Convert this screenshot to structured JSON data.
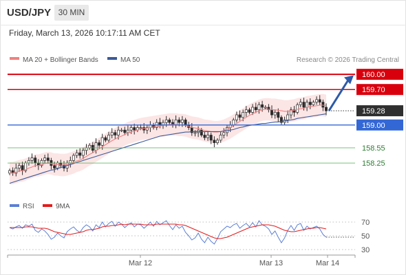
{
  "header": {
    "symbol": "USD/JPY",
    "timeframe": "30 MIN",
    "datetime": "Friday, March 13, 2026 10:17:11 AM CET"
  },
  "legend": {
    "ma20_label": "MA 20 + Bollinger Bands",
    "ma50_label": "MA 50",
    "rsi_label": "RSI",
    "rsi_ma_label": "9MA"
  },
  "copyright": "Research © 2026 Trading Central",
  "colors": {
    "resistance": "#d9000d",
    "support_strong": "#3367d6",
    "support": "#4caf50",
    "ma20": "#f08080",
    "ma50": "#3a5a9a",
    "band_fill": "#fbdcdc",
    "up_candle": "#ffffff",
    "down_candle": "#2b2b2b",
    "rsi": "#5b7fd6",
    "rsi_ma": "#e31b1b"
  },
  "chart_data": [
    {
      "type": "candlestick",
      "instrument": "USD/JPY",
      "interval": "30 MIN",
      "x_ticks": [
        "Mar 12",
        "Mar 13",
        "Mar 14"
      ],
      "price_ylim": [
        157.6,
        160.15
      ],
      "current_price": 159.28,
      "levels": [
        {
          "label": "160.00",
          "value": 160.0,
          "kind": "resistance",
          "style": "bold-red",
          "tag": "box"
        },
        {
          "label": "159.70",
          "value": 159.7,
          "kind": "resistance",
          "style": "red",
          "tag": "box"
        },
        {
          "label": "159.28",
          "value": 159.28,
          "kind": "last",
          "style": "dotted",
          "tag": "dark-box"
        },
        {
          "label": "159.00",
          "value": 159.0,
          "kind": "pivot",
          "style": "blue",
          "tag": "blue-box"
        },
        {
          "label": "158.55",
          "value": 158.55,
          "kind": "support",
          "style": "green",
          "tag": "text"
        },
        {
          "label": "158.25",
          "value": 158.25,
          "kind": "support",
          "style": "green",
          "tag": "text"
        }
      ],
      "scenario": "up",
      "closes": [
        158.1,
        158.05,
        158.15,
        158.2,
        158.1,
        158.25,
        158.3,
        158.35,
        158.25,
        158.2,
        158.3,
        158.35,
        158.3,
        158.2,
        158.15,
        158.25,
        158.2,
        158.15,
        158.25,
        158.3,
        158.4,
        158.45,
        158.4,
        158.5,
        158.55,
        158.6,
        158.5,
        158.65,
        158.6,
        158.75,
        158.7,
        158.8,
        158.85,
        158.8,
        158.9,
        158.9,
        158.85,
        158.9,
        158.95,
        158.9,
        158.95,
        158.95,
        158.9,
        158.95,
        159.0,
        158.95,
        159.05,
        159.0,
        159.05,
        159.1,
        159.05,
        159.0,
        159.1,
        159.05,
        159.1,
        159.0,
        158.95,
        158.85,
        158.85,
        158.9,
        158.8,
        158.75,
        158.8,
        158.7,
        158.65,
        158.7,
        158.8,
        158.85,
        158.95,
        159.0,
        159.1,
        159.2,
        159.15,
        159.25,
        159.3,
        159.25,
        159.35,
        159.3,
        159.4,
        159.35,
        159.35,
        159.3,
        159.2,
        159.25,
        159.15,
        159.05,
        159.1,
        159.2,
        159.3,
        159.25,
        159.4,
        159.45,
        159.35,
        159.45,
        159.4,
        159.45,
        159.5,
        159.45,
        159.35,
        159.28
      ],
      "ma20": [
        158.05,
        158.05,
        158.07,
        158.09,
        158.1,
        158.12,
        158.15,
        158.17,
        158.2,
        158.2,
        158.22,
        158.24,
        158.25,
        158.24,
        158.22,
        158.22,
        158.21,
        158.21,
        158.22,
        158.24,
        158.26,
        158.29,
        158.31,
        158.34,
        158.38,
        158.42,
        158.45,
        158.49,
        158.53,
        158.57,
        158.61,
        158.65,
        158.69,
        158.72,
        158.76,
        158.78,
        158.81,
        158.84,
        158.86,
        158.88,
        158.9,
        158.92,
        158.93,
        158.94,
        158.95,
        158.96,
        158.97,
        158.98,
        158.99,
        159.0,
        159.01,
        159.01,
        159.01,
        159.0,
        159.0,
        158.99,
        158.97,
        158.95,
        158.94,
        158.93,
        158.91,
        158.89,
        158.88,
        158.87,
        158.86,
        158.86,
        158.87,
        158.89,
        158.92,
        158.95,
        158.99,
        159.03,
        159.07,
        159.11,
        159.15,
        159.19,
        159.22,
        159.25,
        159.28,
        159.3,
        159.31,
        159.31,
        159.3,
        159.3,
        159.29,
        159.28,
        159.27,
        159.27,
        159.28,
        159.29,
        159.31,
        159.32,
        159.33,
        159.35,
        159.36,
        159.37,
        159.38,
        159.39,
        159.39,
        159.38
      ],
      "ma50": [
        157.85,
        157.87,
        157.89,
        157.91,
        157.93,
        157.95,
        157.97,
        157.99,
        158.01,
        158.03,
        158.05,
        158.07,
        158.09,
        158.11,
        158.12,
        158.14,
        158.16,
        158.18,
        158.2,
        158.22,
        158.24,
        158.26,
        158.28,
        158.3,
        158.32,
        158.34,
        158.36,
        158.38,
        158.4,
        158.42,
        158.44,
        158.46,
        158.48,
        158.5,
        158.52,
        158.54,
        158.56,
        158.58,
        158.6,
        158.62,
        158.64,
        158.66,
        158.68,
        158.7,
        158.72,
        158.74,
        158.76,
        158.78,
        158.79,
        158.8,
        158.81,
        158.82,
        158.83,
        158.84,
        158.85,
        158.86,
        158.86,
        158.87,
        158.87,
        158.87,
        158.87,
        158.87,
        158.87,
        158.87,
        158.87,
        158.87,
        158.87,
        158.88,
        158.89,
        158.9,
        158.91,
        158.93,
        158.95,
        158.96,
        158.98,
        158.99,
        159.0,
        159.01,
        159.02,
        159.03,
        159.03,
        159.04,
        159.05,
        159.06,
        159.06,
        159.07,
        159.08,
        159.09,
        159.1,
        159.11,
        159.13,
        159.14,
        159.15,
        159.16,
        159.17,
        159.18,
        159.19,
        159.2,
        159.21,
        159.22
      ],
      "band_width": 0.22
    },
    {
      "type": "line",
      "title": "RSI",
      "y_ticks": [
        70,
        50,
        30
      ],
      "ylim": [
        25,
        80
      ],
      "series": [
        {
          "name": "RSI",
          "values": [
            62,
            60,
            63,
            65,
            61,
            66,
            64,
            67,
            58,
            55,
            60,
            57,
            52,
            45,
            48,
            54,
            50,
            47,
            56,
            60,
            63,
            58,
            55,
            62,
            66,
            63,
            57,
            66,
            62,
            70,
            63,
            68,
            71,
            64,
            70,
            67,
            62,
            66,
            69,
            63,
            67,
            66,
            61,
            65,
            70,
            64,
            71,
            66,
            69,
            72,
            65,
            59,
            66,
            61,
            64,
            55,
            50,
            44,
            47,
            54,
            45,
            40,
            48,
            42,
            38,
            46,
            56,
            60,
            64,
            62,
            66,
            68,
            61,
            65,
            68,
            63,
            69,
            63,
            72,
            66,
            64,
            60,
            52,
            57,
            48,
            40,
            47,
            58,
            65,
            58,
            66,
            68,
            58,
            64,
            60,
            62,
            64,
            60,
            52,
            48
          ]
        },
        {
          "name": "9MA",
          "values": [
            62,
            62,
            62,
            62,
            62,
            63,
            63,
            63,
            62,
            61,
            61,
            61,
            60,
            58,
            56,
            55,
            54,
            53,
            52,
            52,
            53,
            54,
            55,
            56,
            58,
            59,
            59,
            60,
            61,
            63,
            64,
            64,
            65,
            65,
            66,
            67,
            66,
            67,
            67,
            67,
            67,
            67,
            66,
            66,
            66,
            66,
            67,
            67,
            67,
            67,
            67,
            67,
            67,
            66,
            66,
            65,
            63,
            61,
            59,
            57,
            55,
            53,
            51,
            49,
            47,
            46,
            46,
            47,
            48,
            50,
            52,
            54,
            56,
            58,
            60,
            62,
            63,
            64,
            65,
            66,
            66,
            66,
            65,
            64,
            62,
            60,
            58,
            57,
            56,
            56,
            57,
            58,
            59,
            60,
            61,
            61,
            62,
            62,
            61,
            60
          ]
        }
      ]
    }
  ]
}
